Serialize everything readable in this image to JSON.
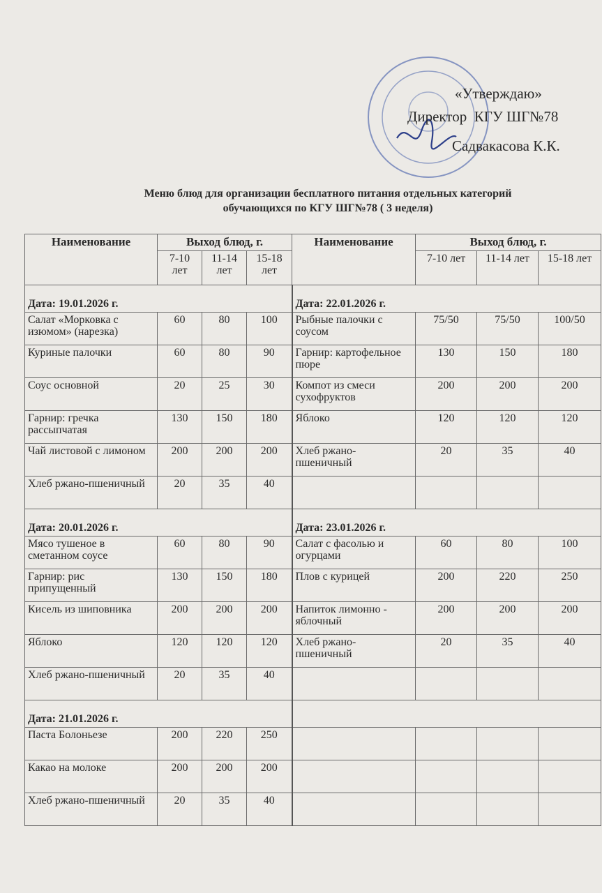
{
  "approval": {
    "line1": "«Утверждаю»",
    "line2": "Директор  КГУ ШГ№78",
    "line3": "Садвакасова К.К."
  },
  "title": [
    "Меню блюд для организации бесплатного питания отдельных категорий",
    "обучающихся по КГУ ШГ№78 ( 3 неделя)"
  ],
  "table": {
    "header": {
      "name": "Наименование",
      "output": "Выход блюд, г.",
      "ages": [
        "7-10 лет",
        "11-14 лет",
        "15-18 лет"
      ]
    },
    "left": [
      {
        "date": "Дата: 19.01.2026 г.",
        "items": [
          {
            "name": "Салат «Морковка с изюмом» (нарезка)",
            "portions": [
              60,
              80,
              100
            ]
          },
          {
            "name": "Куриные палочки",
            "portions": [
              60,
              80,
              90
            ]
          },
          {
            "name": "Соус основной",
            "portions": [
              20,
              25,
              30
            ]
          },
          {
            "name": "Гарнир: гречка рассыпчатая",
            "portions": [
              130,
              150,
              180
            ]
          },
          {
            "name": "Чай листовой с лимоном",
            "portions": [
              200,
              200,
              200
            ]
          },
          {
            "name": "Хлеб ржано-пшеничный",
            "portions": [
              20,
              35,
              40
            ]
          }
        ]
      },
      {
        "date": "Дата: 20.01.2026 г.",
        "items": [
          {
            "name": "Мясо тушеное в сметанном соусе",
            "portions": [
              60,
              80,
              90
            ]
          },
          {
            "name": "Гарнир: рис припущенный",
            "portions": [
              130,
              150,
              180
            ]
          },
          {
            "name": "Кисель из шиповника",
            "portions": [
              200,
              200,
              200
            ]
          },
          {
            "name": "Яблоко",
            "portions": [
              120,
              120,
              120
            ]
          },
          {
            "name": "Хлеб ржано-пшеничный",
            "portions": [
              20,
              35,
              40
            ]
          }
        ]
      },
      {
        "date": "Дата: 21.01.2026 г.",
        "items": [
          {
            "name": "Паста Болоньезе",
            "portions": [
              200,
              220,
              250
            ]
          },
          {
            "name": "Какао на молоке",
            "portions": [
              200,
              200,
              200
            ]
          },
          {
            "name": "Хлеб ржано-пшеничный",
            "portions": [
              20,
              35,
              40
            ]
          }
        ]
      }
    ],
    "right": [
      {
        "date": "Дата: 22.01.2026 г.",
        "items": [
          {
            "name": "Рыбные палочки с соусом",
            "portions": [
              "75/50",
              "75/50",
              "100/50"
            ]
          },
          {
            "name": "Гарнир: картофельное пюре",
            "portions": [
              130,
              150,
              180
            ]
          },
          {
            "name": "Компот из смеси сухофруктов",
            "portions": [
              200,
              200,
              200
            ]
          },
          {
            "name": "Яблоко",
            "portions": [
              120,
              120,
              120
            ]
          },
          {
            "name": "Хлеб ржано-пшеничный",
            "portions": [
              20,
              35,
              40
            ]
          }
        ]
      },
      {
        "date": "Дата: 23.01.2026 г.",
        "items": [
          {
            "name": "Салат с фасолью и огурцами",
            "portions": [
              60,
              80,
              100
            ]
          },
          {
            "name": "Плов с курицей",
            "portions": [
              200,
              220,
              250
            ]
          },
          {
            "name": "Напиток лимонно - яблочный",
            "portions": [
              200,
              200,
              200
            ]
          },
          {
            "name": "Хлеб ржано-пшеничный",
            "portions": [
              20,
              35,
              40
            ]
          }
        ]
      }
    ]
  }
}
